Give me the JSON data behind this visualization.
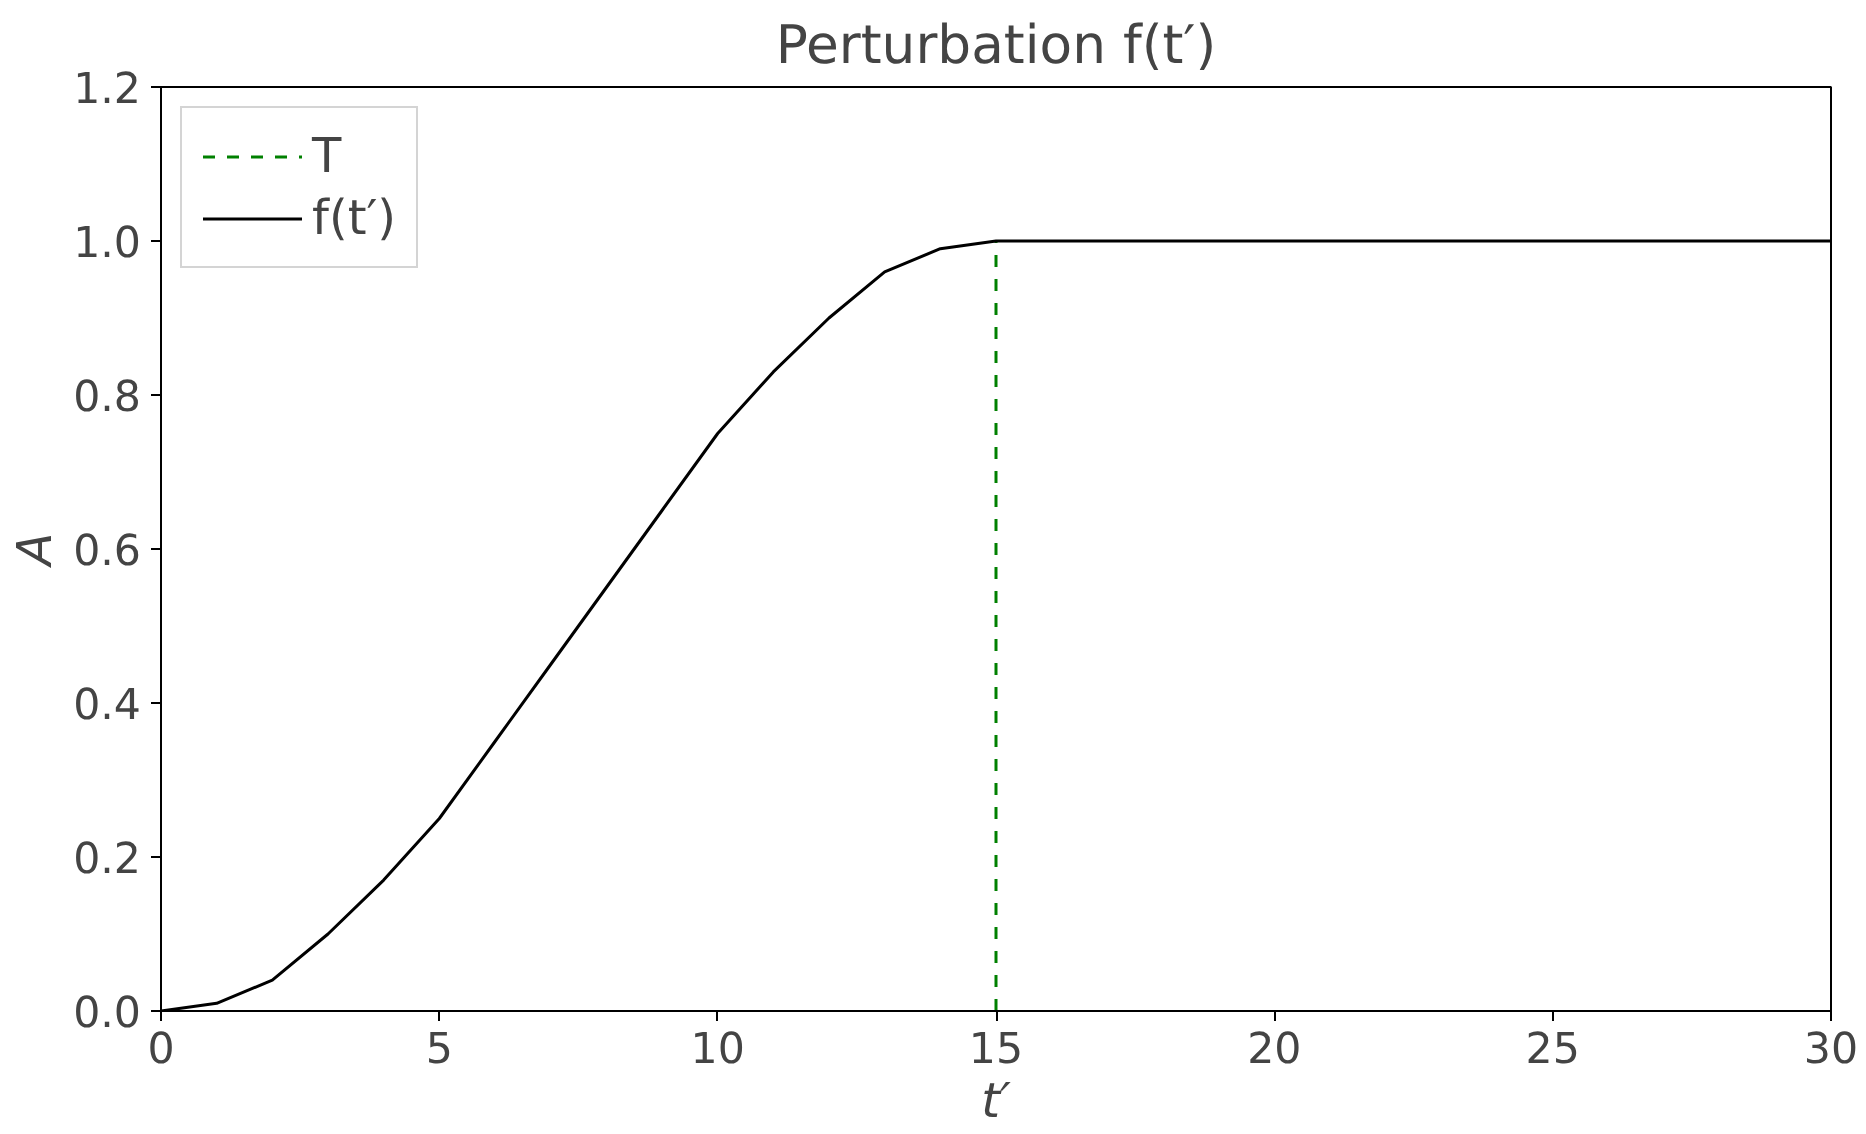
{
  "chart_data": {
    "type": "line",
    "title": "Perturbation f(t′)",
    "xlabel": "t′",
    "ylabel": "A",
    "x": [
      0,
      1,
      2,
      3,
      4,
      5,
      6,
      7,
      7.5,
      8,
      9,
      10,
      11,
      12,
      13,
      14,
      15,
      20,
      25,
      30
    ],
    "series": [
      {
        "name": "f(t′)",
        "color": "#000000",
        "values": [
          0.0,
          0.01,
          0.04,
          0.1,
          0.17,
          0.25,
          0.35,
          0.45,
          0.5,
          0.55,
          0.65,
          0.75,
          0.83,
          0.9,
          0.96,
          0.99,
          1.0,
          1.0,
          1.0,
          1.0
        ]
      }
    ],
    "ref_lines": [
      {
        "axis": "x",
        "value": 15,
        "label": "T",
        "color": "#008000",
        "line_style": "dashed"
      }
    ],
    "xlim": [
      0,
      30
    ],
    "ylim": [
      0,
      1.2
    ],
    "xticks": [
      0,
      5,
      10,
      15,
      20,
      25,
      30
    ],
    "yticks": [
      {
        "value": 0,
        "label": "0.0"
      },
      {
        "value": 0.2,
        "label": "0.2"
      },
      {
        "value": 0.4,
        "label": "0.4"
      },
      {
        "value": 0.6,
        "label": "0.6"
      },
      {
        "value": 0.8,
        "label": "0.8"
      },
      {
        "value": 1.0,
        "label": "1.0"
      },
      {
        "value": 1.2,
        "label": "1.2"
      }
    ],
    "grid": false,
    "legend": "top left",
    "line_style": "solid",
    "marker": "none"
  }
}
